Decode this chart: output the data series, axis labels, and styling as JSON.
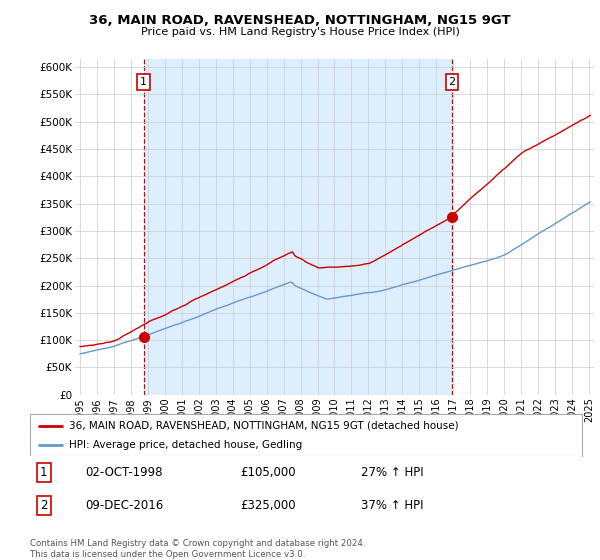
{
  "title": "36, MAIN ROAD, RAVENSHEAD, NOTTINGHAM, NG15 9GT",
  "subtitle": "Price paid vs. HM Land Registry's House Price Index (HPI)",
  "ylabel_ticks": [
    "£0",
    "£50K",
    "£100K",
    "£150K",
    "£200K",
    "£250K",
    "£300K",
    "£350K",
    "£400K",
    "£450K",
    "£500K",
    "£550K",
    "£600K"
  ],
  "ytick_values": [
    0,
    50000,
    100000,
    150000,
    200000,
    250000,
    300000,
    350000,
    400000,
    450000,
    500000,
    550000,
    600000
  ],
  "sale1": {
    "date_num": 1998.75,
    "price": 105000,
    "label": "1",
    "pct": "27% ↑ HPI",
    "date_str": "02-OCT-1998"
  },
  "sale2": {
    "date_num": 2016.92,
    "price": 325000,
    "label": "2",
    "pct": "37% ↑ HPI",
    "date_str": "09-DEC-2016"
  },
  "legend_line1": "36, MAIN ROAD, RAVENSHEAD, NOTTINGHAM, NG15 9GT (detached house)",
  "legend_line2": "HPI: Average price, detached house, Gedling",
  "footer": "Contains HM Land Registry data © Crown copyright and database right 2024.\nThis data is licensed under the Open Government Licence v3.0.",
  "color_red": "#cc0000",
  "color_blue": "#6699cc",
  "color_dashed": "#cc0000",
  "shade_color": "#ddeeff",
  "xlim_start": 1994.7,
  "xlim_end": 2025.3,
  "ylim_top": 615000,
  "ylim_bottom": 0,
  "background": "#ffffff",
  "grid_color": "#cccccc"
}
